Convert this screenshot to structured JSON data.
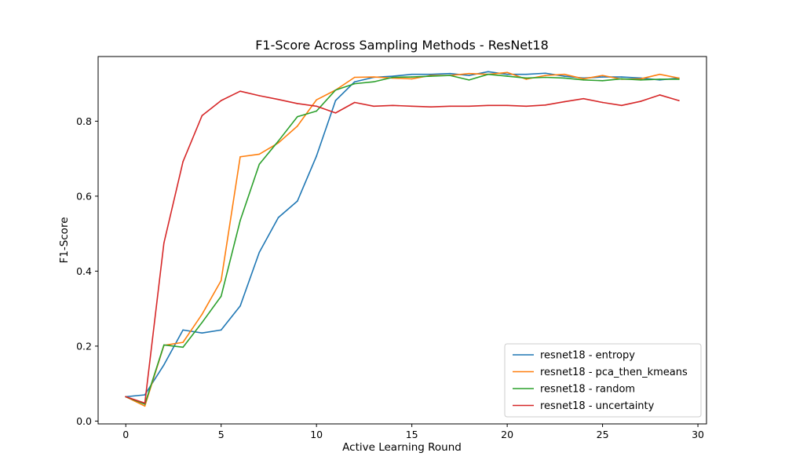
{
  "chart_data": {
    "type": "line",
    "title": "F1-Score Across Sampling Methods - ResNet18",
    "xlabel": "Active Learning Round",
    "ylabel": "F1-Score",
    "xlim": [
      -1.45,
      30.45
    ],
    "ylim": [
      -0.0075,
      0.9725
    ],
    "xticks": [
      0,
      5,
      10,
      15,
      20,
      25,
      30
    ],
    "yticks": [
      0.0,
      0.2,
      0.4,
      0.6,
      0.8
    ],
    "xtick_labels": [
      "0",
      "5",
      "10",
      "15",
      "20",
      "25",
      "30"
    ],
    "ytick_labels": [
      "0.0",
      "0.2",
      "0.4",
      "0.6",
      "0.8"
    ],
    "grid": false,
    "legend_position": "lower-right",
    "x": [
      0,
      1,
      2,
      3,
      4,
      5,
      6,
      7,
      8,
      9,
      10,
      11,
      12,
      13,
      14,
      15,
      16,
      17,
      18,
      19,
      20,
      21,
      22,
      23,
      24,
      25,
      26,
      27,
      28,
      29
    ],
    "series": [
      {
        "name": "resnet18 - entropy",
        "color": "#1f77b4",
        "values": [
          0.065,
          0.07,
          0.15,
          0.243,
          0.235,
          0.243,
          0.307,
          0.45,
          0.543,
          0.587,
          0.707,
          0.855,
          0.905,
          0.917,
          0.92,
          0.925,
          0.925,
          0.927,
          0.922,
          0.932,
          0.925,
          0.925,
          0.928,
          0.92,
          0.915,
          0.918,
          0.918,
          0.915,
          0.91,
          0.915
        ]
      },
      {
        "name": "resnet18 - pca_then_kmeans",
        "color": "#ff7f0e",
        "values": [
          0.065,
          0.04,
          0.202,
          0.21,
          0.285,
          0.375,
          0.705,
          0.712,
          0.742,
          0.787,
          0.857,
          0.883,
          0.917,
          0.918,
          0.915,
          0.913,
          0.922,
          0.922,
          0.927,
          0.925,
          0.93,
          0.912,
          0.922,
          0.925,
          0.913,
          0.922,
          0.912,
          0.913,
          0.925,
          0.915
        ]
      },
      {
        "name": "resnet18 - random",
        "color": "#2ca02c",
        "values": [
          0.065,
          0.045,
          0.203,
          0.197,
          0.263,
          0.333,
          0.535,
          0.685,
          0.747,
          0.812,
          0.827,
          0.883,
          0.9,
          0.905,
          0.917,
          0.918,
          0.92,
          0.922,
          0.91,
          0.925,
          0.92,
          0.915,
          0.917,
          0.915,
          0.91,
          0.908,
          0.913,
          0.91,
          0.912,
          0.912
        ]
      },
      {
        "name": "resnet18 - uncertainty",
        "color": "#d62728",
        "values": [
          0.065,
          0.048,
          0.475,
          0.692,
          0.815,
          0.855,
          0.88,
          0.868,
          0.858,
          0.847,
          0.84,
          0.822,
          0.85,
          0.84,
          0.842,
          0.84,
          0.838,
          0.84,
          0.84,
          0.842,
          0.842,
          0.84,
          0.843,
          0.852,
          0.86,
          0.85,
          0.842,
          0.853,
          0.87,
          0.855
        ]
      }
    ]
  }
}
